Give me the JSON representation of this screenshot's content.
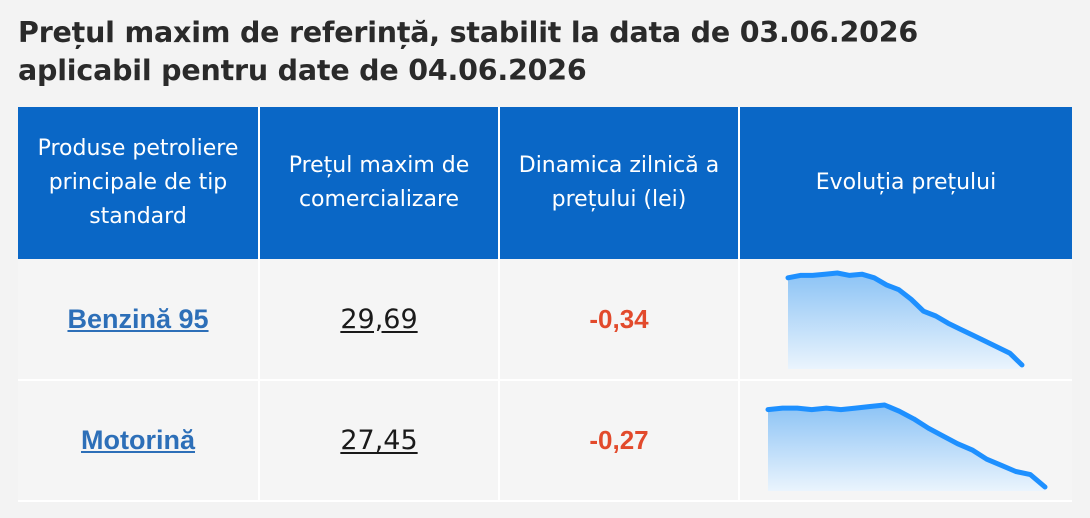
{
  "title_line1": "Prețul maxim de referință, stabilit la data de 03.06.2026",
  "title_line2": "aplicabil pentru date de 04.06.2026",
  "table": {
    "headers": [
      "Produse petroliere principale de tip standard",
      "Prețul maxim de comercializare",
      "Dinamica zilnică a prețului (lei)",
      "Evoluția prețului"
    ],
    "rows": [
      {
        "product": "Benzină 95",
        "price": "29,69",
        "delta": "-0,34",
        "trend": [
          29.68,
          29.7,
          29.7,
          29.71,
          29.72,
          29.7,
          29.71,
          29.68,
          29.62,
          29.58,
          29.5,
          29.4,
          29.36,
          29.3,
          29.25,
          29.2,
          29.15,
          29.1,
          29.05,
          28.95
        ]
      },
      {
        "product": "Motorină",
        "price": "27,45",
        "delta": "-0,27",
        "trend": [
          27.6,
          27.61,
          27.61,
          27.6,
          27.61,
          27.6,
          27.61,
          27.62,
          27.63,
          27.59,
          27.54,
          27.48,
          27.43,
          27.38,
          27.34,
          27.28,
          27.24,
          27.2,
          27.18,
          27.1
        ]
      }
    ]
  },
  "colors": {
    "header_bg": "#0a67c6",
    "link": "#2d6fb8",
    "negative": "#e24a2c",
    "spark_line": "#1e90ff",
    "spark_fill_top": "#8cc3f5",
    "spark_fill_bottom": "#eaf4fd"
  }
}
